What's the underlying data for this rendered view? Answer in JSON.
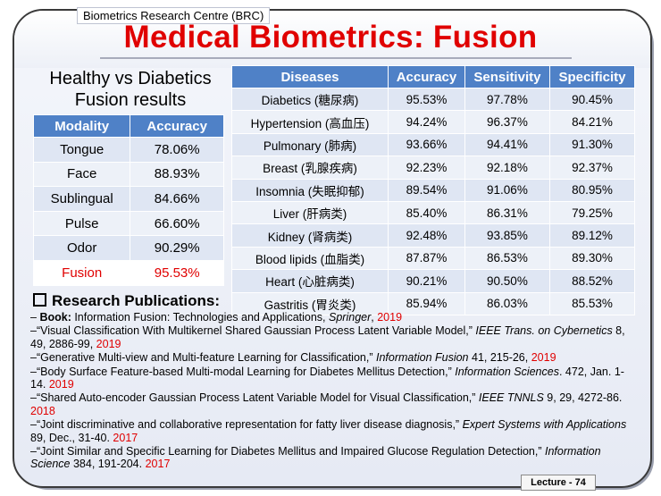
{
  "org": "Biometrics Research Centre (BRC)",
  "title": "Medical Biometrics: Fusion",
  "subtitle": "Healthy vs Diabetics Fusion results",
  "modality_table": {
    "headers": [
      "Modality",
      "Accuracy"
    ],
    "rows": [
      {
        "modality": "Tongue",
        "accuracy": "78.06%"
      },
      {
        "modality": "Face",
        "accuracy": "88.93%"
      },
      {
        "modality": "Sublingual",
        "accuracy": "84.66%"
      },
      {
        "modality": "Pulse",
        "accuracy": "66.60%"
      },
      {
        "modality": "Odor",
        "accuracy": "90.29%"
      },
      {
        "modality": "Fusion",
        "accuracy": "95.53%"
      }
    ]
  },
  "disease_table": {
    "headers": [
      "Diseases",
      "Accuracy",
      "Sensitivity",
      "Specificity"
    ],
    "rows": [
      {
        "disease": "Diabetics (糖尿病)",
        "accuracy": "95.53%",
        "sensitivity": "97.78%",
        "specificity": "90.45%"
      },
      {
        "disease": "Hypertension (高血压)",
        "accuracy": "94.24%",
        "sensitivity": "96.37%",
        "specificity": "84.21%"
      },
      {
        "disease": "Pulmonary (肺病)",
        "accuracy": "93.66%",
        "sensitivity": "94.41%",
        "specificity": "91.30%"
      },
      {
        "disease": "Breast (乳腺疾病)",
        "accuracy": "92.23%",
        "sensitivity": "92.18%",
        "specificity": "92.37%"
      },
      {
        "disease": "Insomnia (失眠抑郁)",
        "accuracy": "89.54%",
        "sensitivity": "91.06%",
        "specificity": "80.95%"
      },
      {
        "disease": "Liver (肝病类)",
        "accuracy": "85.40%",
        "sensitivity": "86.31%",
        "specificity": "79.25%"
      },
      {
        "disease": "Kidney (肾病类)",
        "accuracy": "92.48%",
        "sensitivity": "93.85%",
        "specificity": "89.12%"
      },
      {
        "disease": "Blood lipids (血脂类)",
        "accuracy": "87.87%",
        "sensitivity": "86.53%",
        "specificity": "89.30%"
      },
      {
        "disease": "Heart (心脏病类)",
        "accuracy": "90.21%",
        "sensitivity": "90.50%",
        "specificity": "88.52%"
      },
      {
        "disease": "Gastritis (胃炎类)",
        "accuracy": "85.94%",
        "sensitivity": "86.03%",
        "specificity": "85.53%"
      }
    ]
  },
  "publications": {
    "heading": "Research Publications:",
    "items": [
      {
        "prefix": "–  ",
        "label": "Book:",
        "text": " Information Fusion: Technologies and Applications, ",
        "venue": "Springer",
        "tail": ", ",
        "year": "2019"
      },
      {
        "prefix": "–",
        "text": "“Visual Classification With Multikernel Shared Gaussian Process Latent Variable Model,” ",
        "venue": "IEEE Trans. on Cybernetics",
        "tail": " 8, 49, 2886-99, ",
        "year": "2019"
      },
      {
        "prefix": "–",
        "text": "“Generative Multi-view and Multi-feature Learning for Classification,” ",
        "venue": "Information Fusion",
        "tail": " 41, 215-26, ",
        "year": "2019"
      },
      {
        "prefix": "–",
        "text": "“Body Surface Feature-based Multi-modal Learning for Diabetes Mellitus Detection,” ",
        "venue": "Information Sciences",
        "tail": ". 472, Jan. 1-14. ",
        "year": "2019"
      },
      {
        "prefix": "–",
        "text": "“Shared Auto-encoder Gaussian Process Latent Variable Model for Visual Classification,” ",
        "venue": "IEEE TNNLS",
        "tail": " 9, 29, 4272-86. ",
        "year": "2018"
      },
      {
        "prefix": "–",
        "text": "“Joint discriminative and collaborative representation for fatty liver disease diagnosis,”  ",
        "venue": "Expert Systems with Applications",
        "tail": " 89, Dec., 31-40. ",
        "year": "2017"
      },
      {
        "prefix": "–",
        "text": "“Joint Similar and Specific Learning for Diabetes Mellitus and Impaired Glucose Regulation Detection,” ",
        "venue": "Information Science",
        "tail": " 384, 191-204. ",
        "year": "2017"
      }
    ]
  },
  "footer": "Lecture - 74",
  "colors": {
    "title": "#e00000",
    "header_fill": "#4f81c7",
    "highlight": "#e00000"
  }
}
